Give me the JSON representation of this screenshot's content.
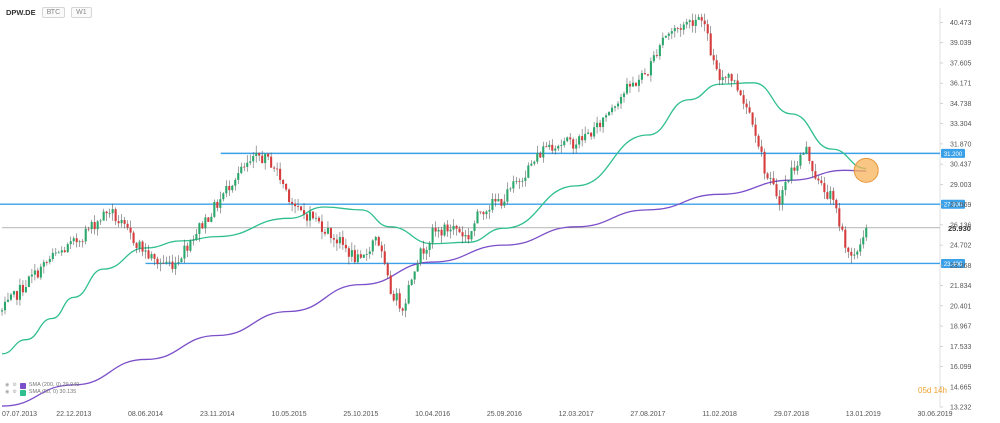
{
  "toolbar": {
    "symbol": "DPW.DE",
    "chip1": "ВТС",
    "chip2": "W1"
  },
  "legend": {
    "items": [
      {
        "label": "SMA (200, 0) 29.949",
        "color": "#7b4fc9",
        "icon": "eye-gear-icons"
      },
      {
        "label": "SMA (50, 0) 30.135",
        "color": "#2fbf8f",
        "icon": "eye-gear-icons"
      }
    ]
  },
  "countdown": "05d 14h",
  "chart_data": {
    "type": "candlestick",
    "y_axis_ticks": [
      40.473,
      39.039,
      37.605,
      36.171,
      34.738,
      33.304,
      31.87,
      30.437,
      29.003,
      27.569,
      26.136,
      24.702,
      23.268,
      21.834,
      20.401,
      18.967,
      17.533,
      16.099,
      14.665,
      13.232
    ],
    "x_axis_labels": [
      "07.07.2013",
      "22.12.2013",
      "08.06.2014",
      "23.11.2014",
      "10.05.2015",
      "25.10.2015",
      "10.04.2016",
      "25.09.2016",
      "12.03.2017",
      "27.08.2017",
      "11.02.2018",
      "29.07.2018",
      "13.01.2019",
      "30.06.2019"
    ],
    "ylim": [
      13.232,
      41.5
    ],
    "current_price": {
      "value": 25.93,
      "label": "25.930",
      "color": "#333333"
    },
    "levels": [
      {
        "value": 31.2,
        "label": "31.200",
        "color": "#3aa0e8",
        "start": "01.12.2014"
      },
      {
        "value": 27.6,
        "label": "27.600",
        "color": "#3aa0e8",
        "start": "01.07.2013"
      },
      {
        "value": 23.4,
        "label": "23.400",
        "color": "#3aa0e8",
        "start": "08.06.2014"
      }
    ],
    "highlight": {
      "date": "20.01.2019",
      "value": 30.0,
      "color": "#f7b45a"
    },
    "colors": {
      "up": "#2aa86b",
      "down": "#d63c3c",
      "sma50": "#2fbf8f",
      "sma200": "#7b4fc9"
    },
    "price_anchors": [
      [
        "07.07.2013",
        20.0
      ],
      [
        "01.09.2013",
        22.0
      ],
      [
        "01.11.2013",
        23.8
      ],
      [
        "22.12.2013",
        24.8
      ],
      [
        "01.02.2014",
        26.0
      ],
      [
        "15.03.2014",
        27.2
      ],
      [
        "15.04.2014",
        26.0
      ],
      [
        "08.06.2014",
        24.2
      ],
      [
        "01.07.2014",
        23.5
      ],
      [
        "15.08.2014",
        23.4
      ],
      [
        "01.10.2014",
        25.5
      ],
      [
        "23.11.2014",
        27.6
      ],
      [
        "01.01.2015",
        29.5
      ],
      [
        "01.03.2015",
        31.0
      ],
      [
        "01.04.2015",
        30.5
      ],
      [
        "10.05.2015",
        28.2
      ],
      [
        "01.06.2015",
        27.0
      ],
      [
        "01.07.2015",
        26.8
      ],
      [
        "01.09.2015",
        25.0
      ],
      [
        "25.10.2015",
        23.4
      ],
      [
        "01.12.2015",
        25.5
      ],
      [
        "01.01.2016",
        21.5
      ],
      [
        "01.02.2016",
        20.3
      ],
      [
        "01.03.2016",
        23.5
      ],
      [
        "10.04.2016",
        25.5
      ],
      [
        "01.06.2016",
        26.0
      ],
      [
        "01.07.2016",
        25.2
      ],
      [
        "01.08.2016",
        27.2
      ],
      [
        "25.09.2016",
        28.0
      ],
      [
        "01.11.2016",
        29.5
      ],
      [
        "01.12.2016",
        30.5
      ],
      [
        "01.01.2017",
        31.8
      ],
      [
        "12.03.2017",
        32.0
      ],
      [
        "01.05.2017",
        33.0
      ],
      [
        "01.06.2017",
        34.5
      ],
      [
        "01.07.2017",
        35.5
      ],
      [
        "27.08.2017",
        37.0
      ],
      [
        "01.10.2017",
        39.5
      ],
      [
        "01.11.2017",
        40.0
      ],
      [
        "01.12.2017",
        40.5
      ],
      [
        "01.01.2018",
        41.0
      ],
      [
        "01.02.2018",
        37.0
      ],
      [
        "11.02.2018",
        36.5
      ],
      [
        "01.03.2018",
        37.0
      ],
      [
        "01.04.2018",
        35.5
      ],
      [
        "01.05.2018",
        33.5
      ],
      [
        "01.06.2018",
        29.5
      ],
      [
        "01.07.2018",
        28.0
      ],
      [
        "29.07.2018",
        30.0
      ],
      [
        "01.09.2018",
        31.5
      ],
      [
        "01.10.2018",
        29.0
      ],
      [
        "01.11.2018",
        28.0
      ],
      [
        "01.12.2018",
        25.0
      ],
      [
        "20.12.2018",
        23.4
      ],
      [
        "13.01.2019",
        25.5
      ],
      [
        "20.01.2019",
        25.93
      ]
    ],
    "sma50_points": [
      [
        "07.07.2013",
        17.0
      ],
      [
        "01.09.2013",
        18.0
      ],
      [
        "01.11.2013",
        19.5
      ],
      [
        "22.12.2013",
        21.0
      ],
      [
        "01.03.2014",
        23.0
      ],
      [
        "08.06.2014",
        24.5
      ],
      [
        "01.09.2014",
        25.0
      ],
      [
        "23.11.2014",
        25.3
      ],
      [
        "10.05.2015",
        26.6
      ],
      [
        "01.08.2015",
        27.4
      ],
      [
        "25.10.2015",
        27.2
      ],
      [
        "01.01.2016",
        26.0
      ],
      [
        "10.04.2016",
        24.8
      ],
      [
        "01.07.2016",
        24.9
      ],
      [
        "25.09.2016",
        25.9
      ],
      [
        "12.03.2017",
        28.9
      ],
      [
        "27.08.2017",
        32.5
      ],
      [
        "01.12.2017",
        35.0
      ],
      [
        "11.02.2018",
        36.1
      ],
      [
        "01.05.2018",
        36.2
      ],
      [
        "29.07.2018",
        34.0
      ],
      [
        "01.11.2018",
        31.5
      ],
      [
        "20.01.2019",
        30.135
      ]
    ],
    "sma200_points": [
      [
        "07.07.2013",
        13.3
      ],
      [
        "22.12.2013",
        14.8
      ],
      [
        "08.06.2014",
        16.6
      ],
      [
        "23.11.2014",
        18.3
      ],
      [
        "10.05.2015",
        20.0
      ],
      [
        "25.10.2015",
        21.9
      ],
      [
        "10.04.2016",
        23.5
      ],
      [
        "25.09.2016",
        24.7
      ],
      [
        "12.03.2017",
        26.0
      ],
      [
        "27.08.2017",
        27.2
      ],
      [
        "11.02.2018",
        28.3
      ],
      [
        "29.07.2018",
        29.3
      ],
      [
        "01.12.2018",
        30.0
      ],
      [
        "20.01.2019",
        29.949
      ]
    ]
  }
}
